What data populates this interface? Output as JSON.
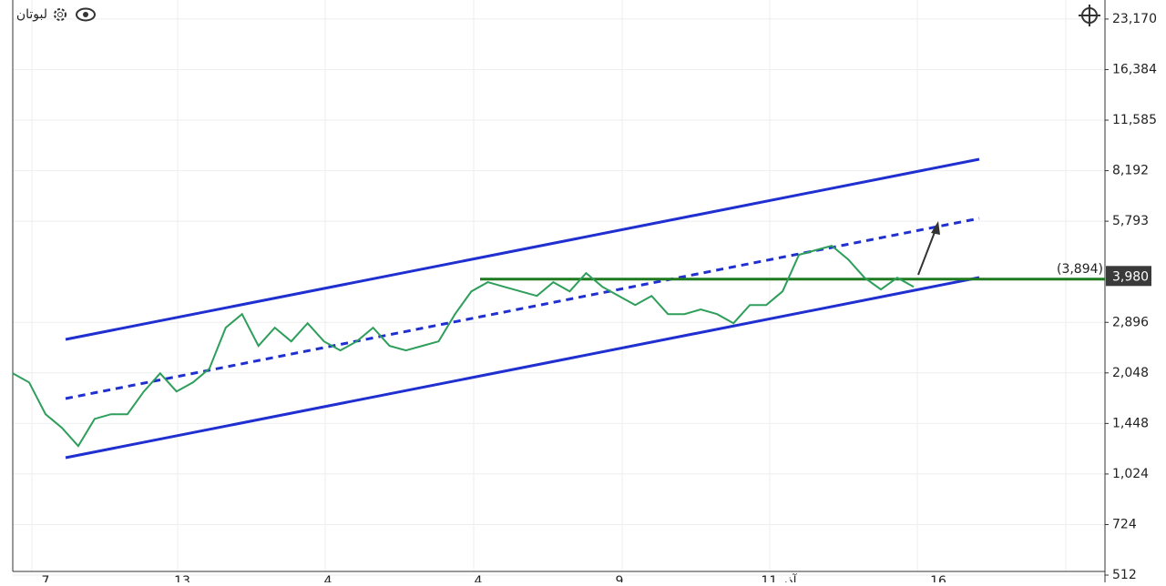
{
  "symbol": "لبوتان",
  "chart_data": {
    "type": "line",
    "log_scale": true,
    "grid": true,
    "color": "#2e9e5b",
    "values": [
      2041,
      1918,
      1543,
      1406,
      1240,
      1495,
      1543,
      1543,
      1803,
      2041,
      1803,
      1918,
      2108,
      2792,
      3065,
      2465,
      2792,
      2542,
      2880,
      2542,
      2389,
      2542,
      2792,
      2465,
      2389,
      2465,
      2542,
      3065,
      3582,
      3814,
      3696,
      3582,
      3471,
      3814,
      3582,
      4060,
      3696,
      3471,
      3262,
      3471,
      3065,
      3065,
      3163,
      3065,
      2880,
      3262,
      3262,
      3582,
      4602,
      4747,
      4896,
      4458,
      3934,
      3628,
      3934,
      3696
    ],
    "ylim": [
      525,
      26400
    ],
    "yticks": [
      {
        "value": 23170,
        "label": "23,170"
      },
      {
        "value": 16384,
        "label": "16,384"
      },
      {
        "value": 11585,
        "label": "11,585"
      },
      {
        "value": 8192,
        "label": "8,192"
      },
      {
        "value": 5793,
        "label": "5,793"
      },
      {
        "value": 2896,
        "label": "2,896"
      },
      {
        "value": 2048,
        "label": "2,048"
      },
      {
        "value": 1448,
        "label": "1,448"
      },
      {
        "value": 1024,
        "label": "1,024"
      },
      724,
      512
    ],
    "x_labels": [
      "7",
      "13",
      "4",
      "4",
      "9",
      "11 آذر",
      "16"
    ],
    "last_price": {
      "value": 3980,
      "label": "3,980"
    },
    "level": {
      "value": 3894,
      "label": "(3,894)"
    }
  }
}
